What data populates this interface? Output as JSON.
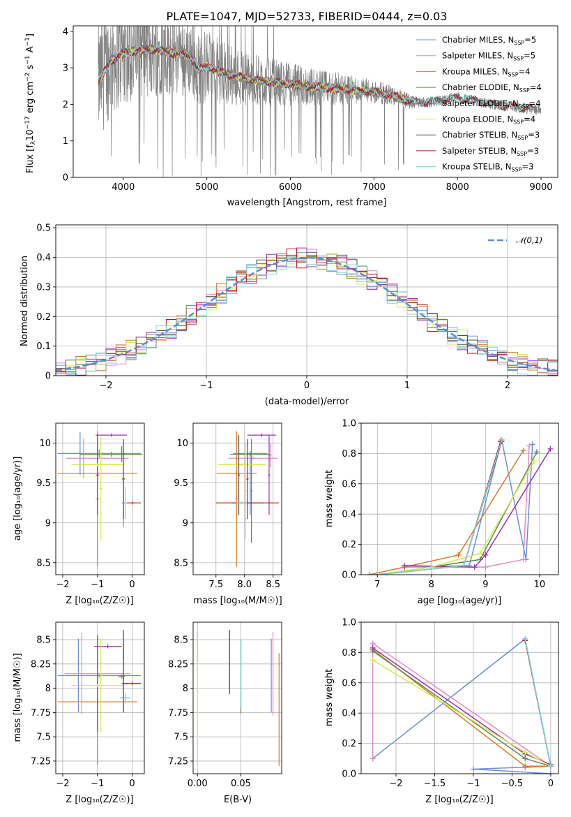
{
  "chart_data": [
    {
      "type": "line",
      "id": "spectrum",
      "title": "PLATE=1047, MJD=52733, FIBERID=0444, z=0.03",
      "xlabel": "wavelength [Angstrom, rest frame]",
      "ylabel": "Flux [f_λ 10^-17 erg cm^-2 s^-1 A^-1]",
      "xlim": [
        3400,
        9200
      ],
      "ylim": [
        0,
        4.15
      ],
      "xticks": [
        4000,
        5000,
        6000,
        7000,
        8000,
        9000
      ],
      "yticks": [
        0,
        1,
        2,
        3,
        4
      ],
      "grid": false,
      "legend_position": "top-right",
      "data_series": {
        "name": "",
        "color": "#808080",
        "x": [
          3700,
          3800,
          3900,
          4000,
          4100,
          4200,
          4300,
          4400,
          4500,
          4600,
          4700,
          4800,
          4900,
          5000,
          5100,
          5200,
          5300,
          5400,
          5500,
          5600,
          5700,
          5800,
          5900,
          6000,
          6100,
          6200,
          6300,
          6400,
          6500,
          6600,
          6700,
          6800,
          6900,
          7000,
          7100,
          7200,
          7300,
          7400,
          7500,
          7600,
          7700,
          7800,
          7900,
          8000,
          8100,
          8200,
          8300,
          8400,
          8500,
          8600,
          8700,
          8800,
          8900
        ],
        "y": [
          2.5,
          3.6,
          2.8,
          3.4,
          3.1,
          3.5,
          2.9,
          3.2,
          3.3,
          2.6,
          3.0,
          2.8,
          2.7,
          3.2,
          2.9,
          2.6,
          2.8,
          3.0,
          2.7,
          2.4,
          2.6,
          2.6,
          2.5,
          2.5,
          2.4,
          2.4,
          2.3,
          2.4,
          2.3,
          2.2,
          2.5,
          2.3,
          2.4,
          2.3,
          2.0,
          2.4,
          2.2,
          2.0,
          1.9,
          2.0,
          2.1,
          2.0,
          2.2,
          2.1,
          2.2,
          2.0,
          1.9,
          1.9,
          2.0,
          1.8,
          1.8,
          1.7,
          1.6
        ],
        "noise_amplitude_blue": [
          4.15,
          0
        ],
        "noise_amplitude_red": [
          2.8,
          1.0
        ]
      },
      "series": [
        {
          "name": "Chabrier MILES, N_SSP=5",
          "color": "#6a8fd8",
          "legend_text": "Chabrier MILES, N",
          "legend_sub": "SSP",
          "legend_tail": "=5"
        },
        {
          "name": "Salpeter MILES, N_SSP=5",
          "color": "#e08ac8",
          "legend_text": "Salpeter MILES, N",
          "legend_sub": "SSP",
          "legend_tail": "=5"
        },
        {
          "name": "Kroupa MILES, N_SSP=4",
          "color": "#d97a25",
          "legend_text": "Kroupa MILES, N",
          "legend_sub": "SSP",
          "legend_tail": "=4"
        },
        {
          "name": "Chabrier ELODIE, N_SSP=4",
          "color": "#5c8a4d",
          "legend_text": "Chabrier ELODIE, N",
          "legend_sub": "SSP",
          "legend_tail": "=4"
        },
        {
          "name": "Salpeter ELODIE, N_SSP=4",
          "color": "#9d2fb0",
          "legend_text": "Salpeter ELODIE, N",
          "legend_sub": "SSP",
          "legend_tail": "=4"
        },
        {
          "name": "Kroupa ELODIE, N_SSP=4",
          "color": "#d7e84a",
          "legend_text": "Kroupa ELODIE, N",
          "legend_sub": "SSP",
          "legend_tail": "=4"
        },
        {
          "name": "Chabrier STELIB, N_SSP=3",
          "color": "#505050",
          "legend_text": "Chabrier STELIB, N",
          "legend_sub": "SSP",
          "legend_tail": "=3"
        },
        {
          "name": "Salpeter STELIB, N_SSP=3",
          "color": "#c0141e",
          "legend_text": "Salpeter STELIB, N",
          "legend_sub": "SSP",
          "legend_tail": "=3"
        },
        {
          "name": "Kroupa STELIB, N_SSP=3",
          "color": "#7ad8d4",
          "legend_text": "Kroupa STELIB, N",
          "legend_sub": "SSP",
          "legend_tail": "=3"
        }
      ],
      "model_curve": {
        "x": [
          3700,
          3850,
          4000,
          4200,
          4400,
          4600,
          4800,
          4900,
          5000,
          5200,
          5400,
          5600,
          5800,
          6000,
          6200,
          6400,
          6600,
          6800,
          7000,
          7200,
          7400,
          7600,
          7800,
          8000,
          8200,
          8400,
          8600,
          8800,
          9000
        ],
        "y": [
          2.6,
          3.2,
          3.4,
          3.5,
          3.5,
          3.4,
          3.3,
          2.95,
          3.05,
          2.85,
          2.75,
          2.65,
          2.6,
          2.55,
          2.5,
          2.45,
          2.42,
          2.38,
          2.35,
          2.25,
          2.1,
          2.05,
          2.1,
          2.2,
          2.1,
          2.0,
          1.95,
          1.9,
          1.85
        ]
      }
    },
    {
      "type": "step",
      "id": "residuals",
      "xlabel": "(data-model)/error",
      "ylabel": "Normed distribution",
      "xlim": [
        -2.5,
        2.5
      ],
      "ylim": [
        0,
        0.51
      ],
      "xticks": [
        -2,
        -1,
        0,
        1,
        2
      ],
      "yticks": [
        0.0,
        0.1,
        0.2,
        0.3,
        0.4,
        0.5
      ],
      "grid": true,
      "legend_position": "top-right",
      "legend": "𝒩(0,1)",
      "gaussian_color": "#5b8bd9",
      "bin_width": 0.1
    },
    {
      "type": "errorbar",
      "id": "age-vs-Z",
      "xlabel": "Z [log₁₀(Z/Z☉)]",
      "ylabel": "age  [log₁₀(age/yr)]",
      "xlim": [
        -2.2,
        0.35
      ],
      "ylim": [
        8.35,
        10.25
      ],
      "xticks": [
        -2,
        -1,
        0
      ],
      "yticks": [
        8.5,
        9.0,
        9.5,
        10.0
      ],
      "grid": true
    },
    {
      "type": "errorbar",
      "id": "age-vs-mass",
      "xlabel": "mass [log₁₀(M/M☉)]",
      "xlim": [
        7.1,
        8.65
      ],
      "ylim": [
        8.35,
        10.25
      ],
      "xticks": [
        7.5,
        8.0,
        8.5
      ],
      "yticks": [
        8.5,
        9.0,
        9.5,
        10.0
      ],
      "grid": true
    },
    {
      "type": "line",
      "id": "massweight-vs-age",
      "xlabel": "age  [log₁₀(age/yr)]",
      "ylabel": "mass weight",
      "xlim": [
        6.7,
        10.35
      ],
      "ylim": [
        0,
        1.0
      ],
      "xticks": [
        7,
        8,
        9,
        10
      ],
      "yticks": [
        0.0,
        0.2,
        0.4,
        0.6,
        0.8,
        1.0
      ],
      "grid": true
    },
    {
      "type": "errorbar",
      "id": "mass-vs-Z",
      "xlabel": "Z [log₁₀(Z/Z☉)]",
      "ylabel": "mass [log₁₀(M/M☉)]",
      "xlim": [
        -2.2,
        0.35
      ],
      "ylim": [
        7.12,
        8.68
      ],
      "xticks": [
        -2,
        -1,
        0
      ],
      "yticks": [
        7.25,
        7.5,
        7.75,
        8.0,
        8.25,
        8.5
      ],
      "grid": true
    },
    {
      "type": "errorbar",
      "id": "mass-vs-EBV",
      "xlabel": "E(B-V)",
      "xlim": [
        -0.005,
        0.097
      ],
      "ylim": [
        7.12,
        8.68
      ],
      "xticks": [
        0.0,
        0.05
      ],
      "yticks": [
        7.25,
        7.5,
        7.75,
        8.0,
        8.25,
        8.5
      ],
      "grid": true
    },
    {
      "type": "line",
      "id": "massweight-vs-Z",
      "xlabel": "Z [log₁₀(Z/Z☉)]",
      "ylabel": "mass weight",
      "xlim": [
        -2.45,
        0.1
      ],
      "ylim": [
        0,
        1.0
      ],
      "xticks": [
        -2.0,
        -1.5,
        -1.0,
        -0.5,
        0.0
      ],
      "yticks": [
        0.0,
        0.2,
        0.4,
        0.6,
        0.8,
        1.0
      ],
      "grid": true
    }
  ],
  "models": [
    {
      "color": "#6a8fd8",
      "ebv": 0.085,
      "pops": [
        [
          -2.3,
          9.87,
          7.85,
          0.1
        ],
        [
          -1.0,
          9.87,
          8.05,
          0.03
        ],
        [
          -0.33,
          9.87,
          8.05,
          0.89
        ],
        [
          -0.33,
          9.87,
          8.05,
          0.1
        ],
        [
          0.0,
          9.25,
          8.05,
          0.05
        ]
      ],
      "age_pts": [
        [
          9.75,
          0.1
        ],
        [
          9.87,
          0.86
        ],
        [
          9.3,
          0.89
        ],
        [
          8.7,
          0.06
        ],
        [
          7.5,
          0.05
        ]
      ],
      "z_pts": [
        [
          -2.3,
          0.1
        ],
        [
          -0.33,
          0.89
        ],
        [
          0.0,
          0.05
        ],
        [
          -1.0,
          0.03
        ],
        [
          0.0,
          0.0
        ]
      ]
    },
    {
      "color": "#e08ac8",
      "ebv": 0.087,
      "pops": [
        [
          -1.5,
          9.81,
          8.15,
          0.1
        ]
      ],
      "age_pts": [
        [
          9.7,
          0.1
        ],
        [
          9.81,
          0.85
        ],
        [
          9.0,
          0.05
        ],
        [
          7.5,
          0.05
        ]
      ],
      "z_pts": [
        [
          -2.3,
          0.1
        ],
        [
          -2.3,
          0.86
        ],
        [
          0.0,
          0.05
        ],
        [
          -0.33,
          0.04
        ]
      ]
    },
    {
      "color": "#d97a25",
      "ebv": 0.094,
      "pops": [
        [
          -1.0,
          9.62,
          7.87,
          0.82
        ]
      ],
      "age_pts": [
        [
          9.7,
          0.82
        ],
        [
          8.5,
          0.13
        ],
        [
          7.5,
          0.05
        ],
        [
          6.85,
          0.0
        ]
      ],
      "z_pts": [
        [
          -2.3,
          0.82
        ],
        [
          -0.33,
          0.05
        ],
        [
          0.0,
          0.05
        ]
      ]
    },
    {
      "color": "#5c8a4d",
      "ebv": 0.05,
      "pops": [
        [
          -0.3,
          9.87,
          8.12,
          0.81
        ]
      ],
      "age_pts": [
        [
          9.95,
          0.81
        ],
        [
          8.9,
          0.1
        ],
        [
          8.0,
          0.05
        ],
        [
          7.0,
          0.0
        ]
      ],
      "z_pts": [
        [
          -2.3,
          0.81
        ],
        [
          -0.33,
          0.1
        ],
        [
          0.0,
          0.05
        ]
      ]
    },
    {
      "color": "#9d2fb0",
      "ebv": 0.0,
      "pops": [
        [
          -0.7,
          10.1,
          8.43,
          0.83
        ]
      ],
      "age_pts": [
        [
          10.2,
          0.83
        ],
        [
          9.0,
          0.13
        ],
        [
          8.8,
          0.05
        ],
        [
          7.5,
          0.06
        ]
      ],
      "z_pts": [
        [
          -2.3,
          0.83
        ],
        [
          -0.33,
          0.13
        ],
        [
          0.0,
          0.06
        ]
      ]
    },
    {
      "color": "#d7e84a",
      "ebv": 0.0,
      "pops": [
        [
          -1.2,
          9.73,
          8.03,
          0.75
        ]
      ],
      "age_pts": [
        [
          9.9,
          0.75
        ],
        [
          8.9,
          0.14
        ],
        [
          8.0,
          0.05
        ],
        [
          7.0,
          0.0
        ]
      ],
      "z_pts": [
        [
          -2.3,
          0.75
        ],
        [
          -0.33,
          0.14
        ],
        [
          0.0,
          0.05
        ]
      ]
    },
    {
      "color": "#505050",
      "ebv": 0.05,
      "pops": [
        [
          -0.25,
          9.25,
          7.95,
          0.88
        ]
      ],
      "age_pts": [
        [
          9.3,
          0.88
        ],
        [
          8.6,
          0.06
        ],
        [
          7.0,
          0.0
        ]
      ],
      "z_pts": [
        [
          -0.33,
          0.88
        ],
        [
          0.0,
          0.05
        ]
      ]
    },
    {
      "color": "#c0141e",
      "ebv": 0.037,
      "pops": [
        [
          0.15,
          9.25,
          8.05,
          0.88
        ]
      ],
      "age_pts": [
        [
          9.28,
          0.88
        ],
        [
          8.6,
          0.06
        ],
        [
          7.0,
          0.0
        ]
      ],
      "z_pts": [
        [
          -0.33,
          0.88
        ],
        [
          0.0,
          0.05
        ]
      ]
    },
    {
      "color": "#7ad8d4",
      "ebv": 0.05,
      "pops": [
        [
          0.0,
          9.25,
          7.9,
          0.89
        ]
      ],
      "age_pts": [
        [
          9.3,
          0.89
        ],
        [
          8.6,
          0.06
        ],
        [
          7.0,
          0.0
        ]
      ],
      "z_pts": [
        [
          -0.33,
          0.89
        ],
        [
          0.0,
          0.05
        ]
      ]
    }
  ]
}
